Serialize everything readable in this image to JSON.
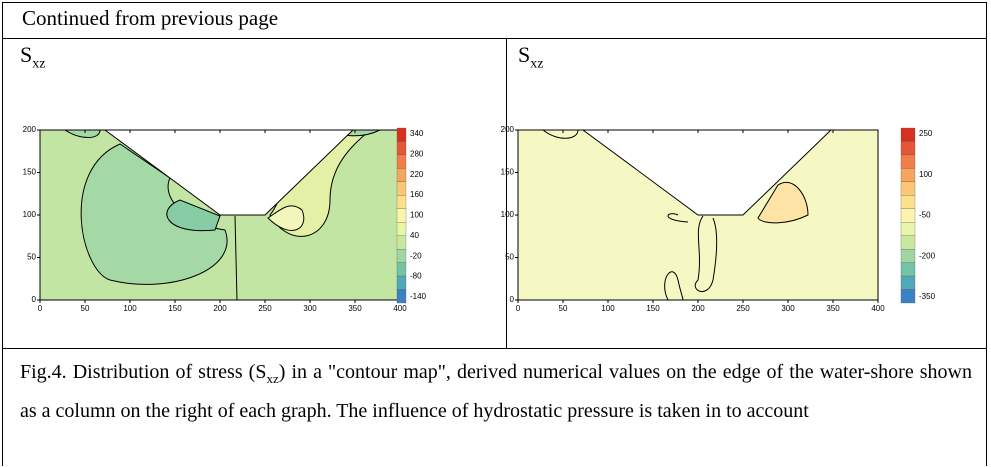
{
  "header": "Continued from previous page",
  "panels": [
    {
      "label": "S",
      "label_sub": "xz",
      "xticks": [
        0,
        50,
        100,
        150,
        200,
        250,
        300,
        350,
        400
      ],
      "yticks": [
        0,
        50,
        100,
        150,
        200
      ],
      "colorbar_labels": [
        340,
        280,
        220,
        160,
        100,
        40,
        -20,
        -80,
        -140
      ]
    },
    {
      "label": "S",
      "label_sub": "xz",
      "xticks": [
        0,
        50,
        100,
        150,
        200,
        250,
        300,
        350,
        400
      ],
      "yticks": [
        0,
        50,
        100,
        150,
        200
      ],
      "colorbar_labels": [
        250,
        100,
        -50,
        -200,
        -350
      ]
    }
  ],
  "caption": {
    "before": "Fig.4. Distribution of stress (S",
    "sub": "xz",
    "after": ") in a \"contour map\", derived numerical values on the edge of the water-shore shown as a column on the right of each graph. The influence of hydrostatic pressure is taken in to account"
  }
}
